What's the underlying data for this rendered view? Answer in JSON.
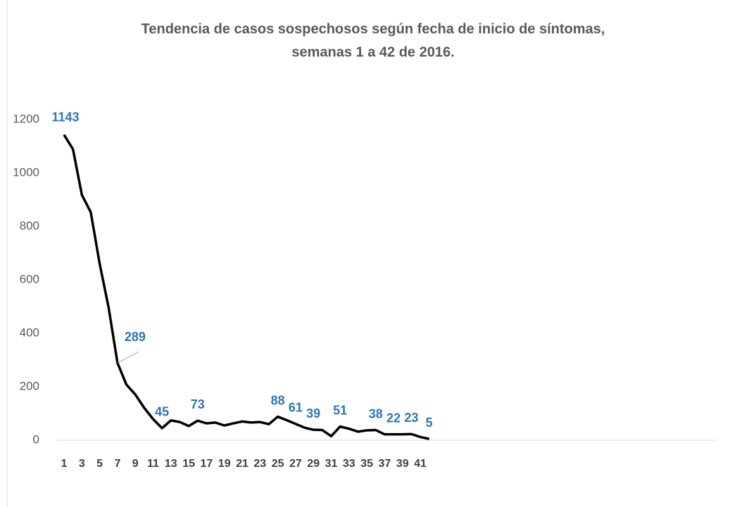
{
  "chart_data": {
    "type": "line",
    "title": [
      "Tendencia de casos sospechosos según fecha de inicio de síntomas,",
      "semanas 1 a 42 de 2016."
    ],
    "categories": [
      1,
      null,
      3,
      null,
      5,
      null,
      7,
      null,
      9,
      null,
      11,
      null,
      13,
      null,
      15,
      null,
      17,
      null,
      19,
      null,
      21,
      null,
      23,
      null,
      25,
      null,
      27,
      null,
      29,
      null,
      31,
      null,
      33,
      null,
      35,
      null,
      37,
      null,
      39,
      null,
      41,
      null
    ],
    "values": [
      1143,
      1089,
      918,
      853,
      660,
      497,
      289,
      208,
      171,
      121,
      79,
      45,
      74,
      68,
      53,
      73,
      63,
      66,
      55,
      63,
      70,
      66,
      68,
      60,
      88,
      75,
      61,
      47,
      39,
      38,
      15,
      51,
      43,
      32,
      37,
      38,
      22,
      22,
      22,
      23,
      12,
      5
    ],
    "labeled_points": [
      0,
      6,
      11,
      15,
      24,
      26,
      28,
      31,
      35,
      37,
      39,
      41
    ],
    "color": "#000000",
    "label_color": "#2e75b6",
    "ylim": [
      0,
      1200
    ],
    "yticks": [
      0,
      200,
      400,
      600,
      800,
      1000,
      1200
    ],
    "grid": false
  }
}
